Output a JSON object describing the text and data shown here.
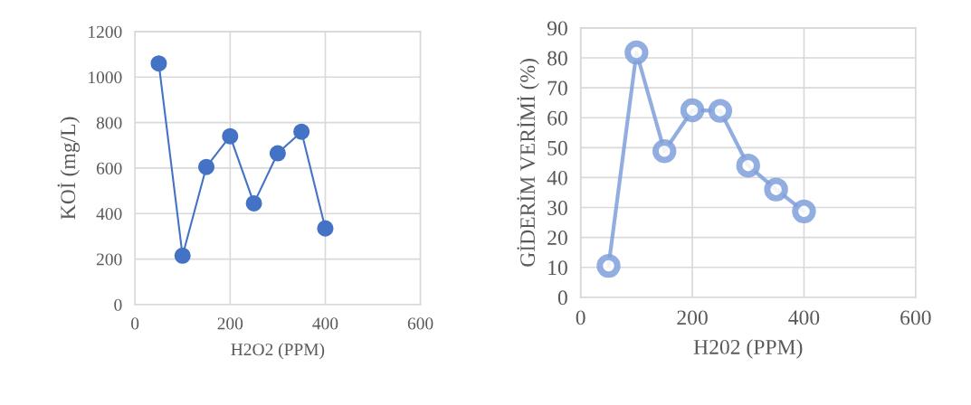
{
  "chart_data": [
    {
      "type": "line",
      "xlabel": "H2O2 (PPM)",
      "ylabel": "KOİ (mg/L)",
      "x": [
        50,
        100,
        150,
        200,
        250,
        300,
        350,
        400
      ],
      "series": [
        {
          "color": "#4472c4",
          "values": [
            1060,
            215,
            605,
            740,
            445,
            665,
            760,
            335
          ]
        }
      ],
      "xlim": [
        0,
        600
      ],
      "xticks": [
        0,
        200,
        400,
        600
      ],
      "ylim": [
        0,
        1200
      ],
      "yticks": [
        0,
        200,
        400,
        600,
        800,
        1000,
        1200
      ],
      "grid": true,
      "marker": "circle",
      "line_style": "solid"
    },
    {
      "type": "line",
      "xlabel": "H202 (PPM)",
      "ylabel": "GİDERİM VERİMİ (%)",
      "x": [
        50,
        100,
        150,
        200,
        250,
        300,
        350,
        400
      ],
      "series": [
        {
          "color": "#7f9fd9",
          "values": [
            10.5,
            81.8,
            48.8,
            62.5,
            62.3,
            44,
            36,
            28.7
          ]
        }
      ],
      "xlim": [
        0,
        600
      ],
      "xticks": [
        0,
        200,
        400,
        600
      ],
      "ylim": [
        0,
        90
      ],
      "yticks": [
        0,
        10,
        20,
        30,
        40,
        50,
        60,
        70,
        80,
        90
      ],
      "grid": true,
      "marker": "circle",
      "line_style": "solid"
    }
  ]
}
